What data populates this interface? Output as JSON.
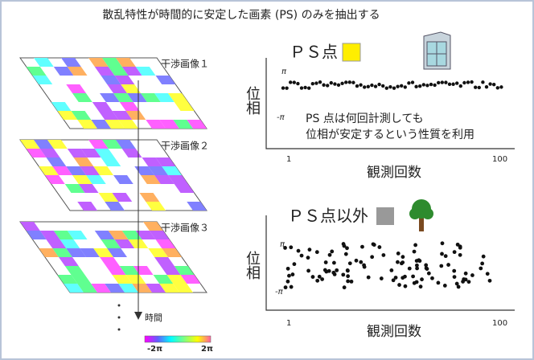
{
  "header": {
    "title": "散乱特性が時間的に安定した画素 (PS) のみを抽出する"
  },
  "layers": [
    "干渉画像１",
    "干渉画像２",
    "干渉画像３"
  ],
  "time_label": "時間",
  "colorbar": {
    "min_label": "-2π",
    "max_label": "2π"
  },
  "panels": [
    {
      "title": "ＰＳ点",
      "y_label": "位相",
      "y_ticks": [
        "π",
        "-π"
      ],
      "x_ticks": [
        "1",
        "100"
      ],
      "x_label": "観測回数",
      "note": [
        "PS 点は何回計測しても",
        "位相が安定するという性質を利用"
      ]
    },
    {
      "title": "ＰＳ点以外",
      "y_label": "位相",
      "y_ticks": [
        "π",
        "-π"
      ],
      "x_ticks": [
        "1",
        "100"
      ],
      "x_label": "観測回数"
    }
  ]
}
